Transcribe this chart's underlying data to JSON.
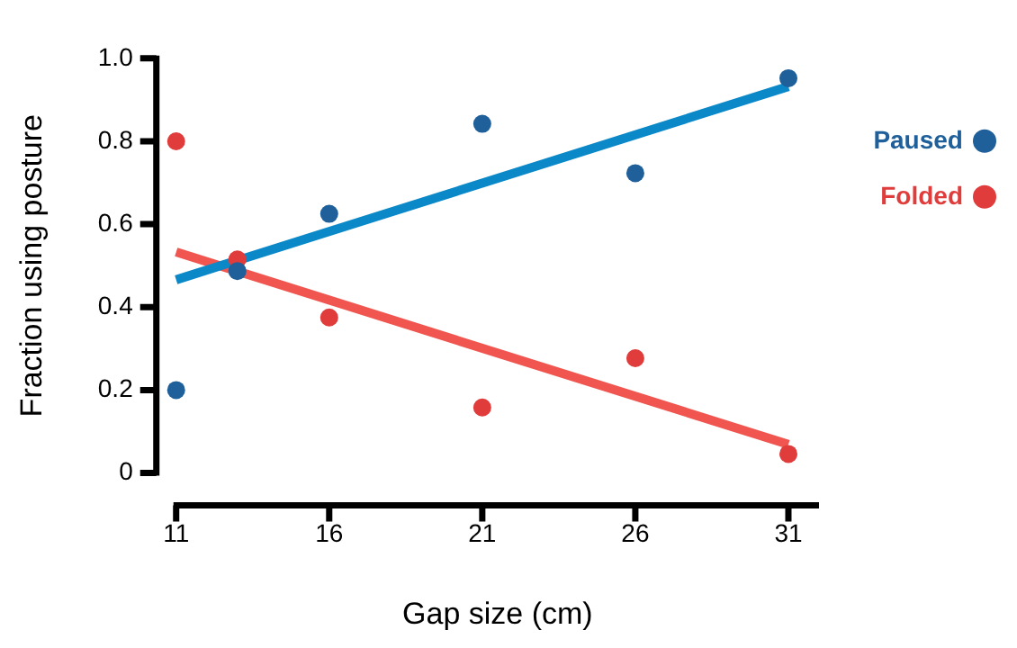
{
  "chart_data": {
    "type": "scatter",
    "xlabel": "Gap size (cm)",
    "ylabel": "Fraction using posture",
    "x": [
      11,
      13,
      16,
      21,
      26,
      31
    ],
    "series": [
      {
        "name": "Paused",
        "color": "#1f5f9a",
        "marker": "circle",
        "values": [
          0.2,
          0.487,
          0.625,
          0.842,
          0.723,
          0.952
        ]
      },
      {
        "name": "Folded",
        "color": "#e03c3c",
        "marker": "circle",
        "values": [
          0.8,
          0.515,
          0.375,
          0.158,
          0.277,
          0.046
        ]
      },
      {
        "type": "line",
        "color": "#0a88c8",
        "marker": "none",
        "values": [
          0.466,
          null,
          null,
          null,
          null,
          0.932
        ]
      },
      {
        "type": "line",
        "color": "#f0554f",
        "marker": "none",
        "values": [
          0.533,
          null,
          null,
          null,
          null,
          0.069
        ]
      }
    ],
    "xlim": [
      11,
      32
    ],
    "xticks": [
      11,
      16,
      21,
      26,
      31
    ],
    "ylim": [
      0,
      1
    ],
    "yticks": [
      0,
      0.2,
      0.4,
      0.6,
      0.8,
      {
        "value": 1,
        "label": "1.0"
      }
    ],
    "grid": false,
    "legend": "right",
    "line_style": "solid"
  }
}
